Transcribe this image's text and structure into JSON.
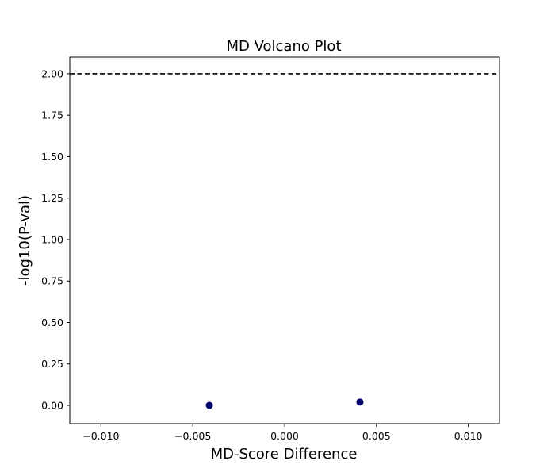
{
  "chart_data": {
    "type": "scatter",
    "title": "MD Volcano Plot",
    "xlabel": "MD-Score Difference",
    "ylabel": "-log10(P-val)",
    "xlim": [
      -0.0117,
      0.0117
    ],
    "ylim": [
      -0.11,
      2.1
    ],
    "x_ticks": [
      -0.01,
      -0.005,
      0.0,
      0.005,
      0.01
    ],
    "x_tick_labels": [
      "−0.010",
      "−0.005",
      "0.000",
      "0.005",
      "0.010"
    ],
    "y_ticks": [
      0.0,
      0.25,
      0.5,
      0.75,
      1.0,
      1.25,
      1.5,
      1.75,
      2.0
    ],
    "y_tick_labels": [
      "0.00",
      "0.25",
      "0.50",
      "0.75",
      "1.00",
      "1.25",
      "1.50",
      "1.75",
      "2.00"
    ],
    "points": [
      {
        "x": -0.0041,
        "y": 0.0
      },
      {
        "x": 0.0041,
        "y": 0.02
      }
    ],
    "threshold_line": {
      "y": 2.0,
      "style": "dashed",
      "color": "#000000"
    },
    "point_color": "#00006b",
    "grid": false,
    "legend": "none"
  }
}
